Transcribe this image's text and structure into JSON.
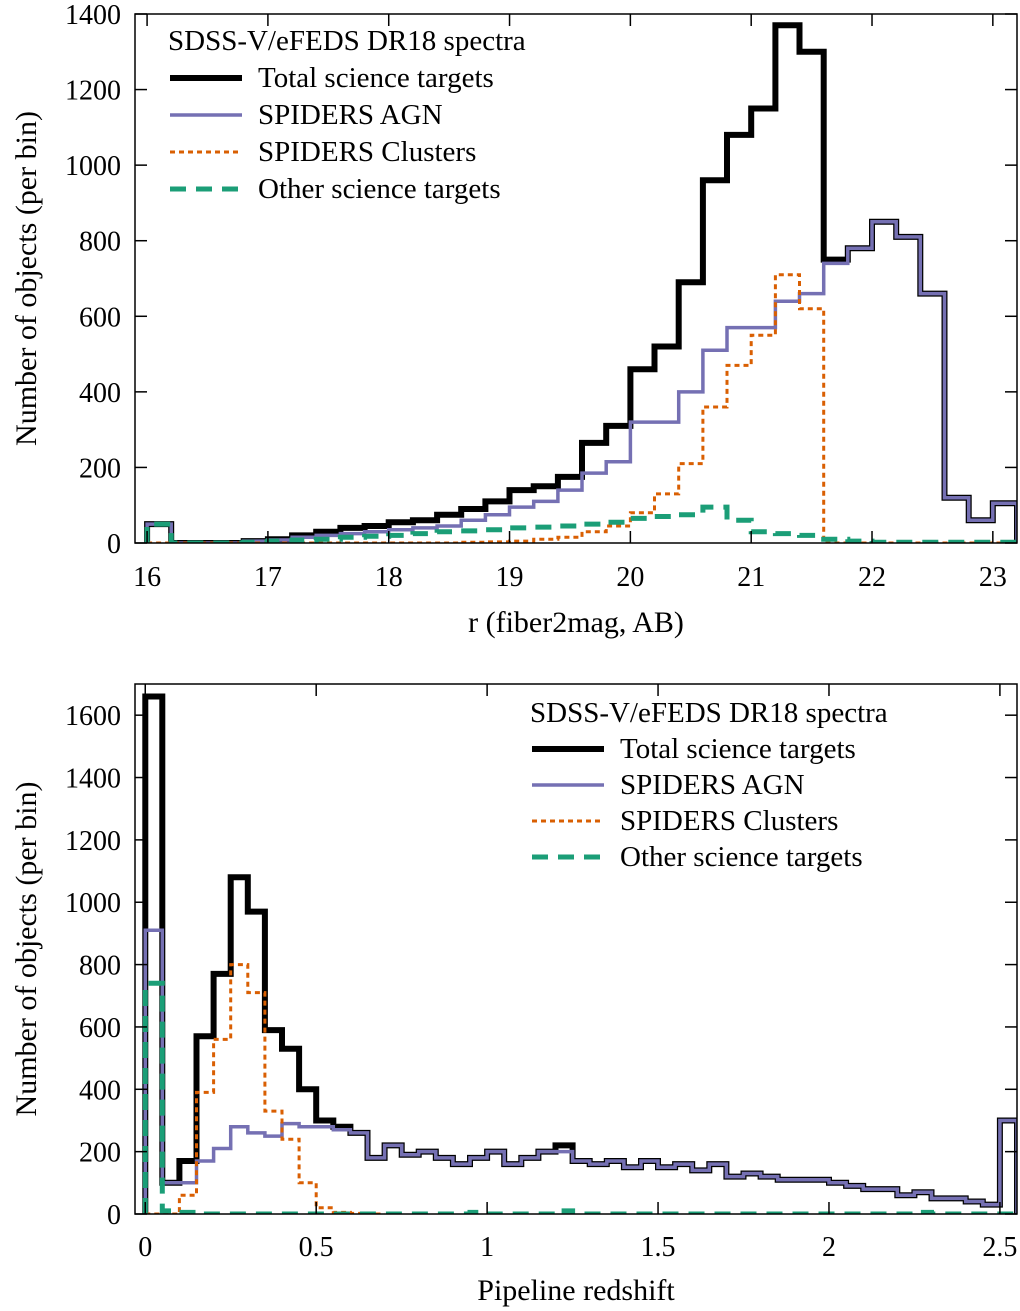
{
  "chart_data": [
    {
      "type": "histogram",
      "xlabel": "r (fiber2mag, AB)",
      "ylabel": "Number of objects (per bin)",
      "xlim": [
        15.9,
        23.2
      ],
      "ylim": [
        0,
        1400
      ],
      "xticks": [
        16,
        17,
        18,
        19,
        20,
        21,
        22,
        23
      ],
      "yticks": [
        0,
        200,
        400,
        600,
        800,
        1000,
        1200,
        1400
      ],
      "bin_width": 0.2,
      "legend_title": "SDSS-V/eFEDS DR18 spectra",
      "legend_position": "top-left",
      "series": [
        {
          "name": "Total science targets",
          "color": "#000000",
          "style": "solid-thick",
          "x": [
            16.0,
            16.2,
            16.4,
            16.6,
            16.8,
            17.0,
            17.2,
            17.4,
            17.6,
            17.8,
            18.0,
            18.2,
            18.4,
            18.6,
            18.8,
            19.0,
            19.2,
            19.4,
            19.6,
            19.8,
            20.0,
            20.2,
            20.4,
            20.6,
            20.8,
            21.0,
            21.2,
            21.4,
            21.6,
            21.8,
            22.0,
            22.2,
            22.4,
            22.6,
            22.8,
            23.0
          ],
          "values": [
            50,
            0,
            0,
            0,
            5,
            10,
            20,
            30,
            40,
            45,
            55,
            60,
            75,
            90,
            110,
            140,
            150,
            175,
            265,
            310,
            460,
            520,
            690,
            960,
            1080,
            1150,
            1370,
            1300,
            750,
            780,
            850,
            810,
            660,
            120,
            60,
            105
          ]
        },
        {
          "name": "SPIDERS AGN",
          "color": "#7570b3",
          "style": "solid",
          "x": [
            16.0,
            16.2,
            16.4,
            16.6,
            16.8,
            17.0,
            17.2,
            17.4,
            17.6,
            17.8,
            18.0,
            18.2,
            18.4,
            18.6,
            18.8,
            19.0,
            19.2,
            19.4,
            19.6,
            19.8,
            20.0,
            20.2,
            20.4,
            20.6,
            20.8,
            21.0,
            21.2,
            21.4,
            21.6,
            21.8,
            22.0,
            22.2,
            22.4,
            22.6,
            22.8,
            23.0
          ],
          "values": [
            50,
            0,
            0,
            0,
            5,
            8,
            15,
            20,
            25,
            30,
            35,
            40,
            45,
            60,
            75,
            95,
            110,
            140,
            185,
            215,
            320,
            320,
            400,
            510,
            570,
            570,
            640,
            660,
            740,
            780,
            850,
            810,
            660,
            120,
            60,
            105
          ]
        },
        {
          "name": "SPIDERS Clusters",
          "color": "#d95f02",
          "style": "dotted",
          "x": [
            16.0,
            16.2,
            16.4,
            16.6,
            16.8,
            17.0,
            17.2,
            17.4,
            17.6,
            17.8,
            18.0,
            18.2,
            18.4,
            18.6,
            18.8,
            19.0,
            19.2,
            19.4,
            19.6,
            19.8,
            20.0,
            20.2,
            20.4,
            20.6,
            20.8,
            21.0,
            21.2,
            21.4,
            21.6,
            21.8,
            22.0,
            22.2,
            22.4,
            22.6,
            22.8,
            23.0
          ],
          "values": [
            0,
            0,
            0,
            0,
            0,
            0,
            0,
            0,
            0,
            0,
            0,
            0,
            0,
            2,
            3,
            5,
            10,
            15,
            30,
            45,
            80,
            130,
            210,
            360,
            470,
            550,
            710,
            620,
            0,
            0,
            0,
            0,
            0,
            0,
            0,
            0
          ]
        },
        {
          "name": "Other science targets",
          "color": "#1b9e77",
          "style": "dashed",
          "x": [
            16.0,
            16.2,
            16.4,
            16.6,
            16.8,
            17.0,
            17.2,
            17.4,
            17.6,
            17.8,
            18.0,
            18.2,
            18.4,
            18.6,
            18.8,
            19.0,
            19.2,
            19.4,
            19.6,
            19.8,
            20.0,
            20.2,
            20.4,
            20.6,
            20.8,
            21.0,
            21.2,
            21.4,
            21.6,
            21.8,
            22.0,
            22.2,
            22.4,
            22.6,
            22.8,
            23.0
          ],
          "values": [
            50,
            0,
            0,
            0,
            2,
            5,
            8,
            10,
            15,
            18,
            20,
            25,
            30,
            32,
            35,
            40,
            42,
            45,
            50,
            55,
            65,
            70,
            75,
            95,
            60,
            30,
            25,
            20,
            10,
            5,
            2,
            2,
            2,
            2,
            2,
            2
          ]
        }
      ]
    },
    {
      "type": "histogram",
      "xlabel": "Pipeline redshift",
      "ylabel": "Number of objects (per bin)",
      "xlim": [
        -0.03,
        2.55
      ],
      "ylim": [
        0,
        1700
      ],
      "xticks": [
        0,
        0.5,
        1,
        1.5,
        2,
        2.5
      ],
      "xtick_labels": [
        "0",
        "0.5",
        "1",
        "1.5",
        "2",
        "2.5"
      ],
      "yticks": [
        0,
        200,
        400,
        600,
        800,
        1000,
        1200,
        1400,
        1600
      ],
      "bin_width": 0.05,
      "legend_title": "SDSS-V/eFEDS DR18 spectra",
      "legend_position": "top-right",
      "series": [
        {
          "name": "Total science targets",
          "color": "#000000",
          "style": "solid-thick",
          "x": [
            0.0,
            0.05,
            0.1,
            0.15,
            0.2,
            0.25,
            0.3,
            0.35,
            0.4,
            0.45,
            0.5,
            0.55,
            0.6,
            0.65,
            0.7,
            0.75,
            0.8,
            0.85,
            0.9,
            0.95,
            1.0,
            1.05,
            1.1,
            1.15,
            1.2,
            1.25,
            1.3,
            1.35,
            1.4,
            1.45,
            1.5,
            1.55,
            1.6,
            1.65,
            1.7,
            1.75,
            1.8,
            1.85,
            1.9,
            1.95,
            2.0,
            2.05,
            2.1,
            2.15,
            2.2,
            2.25,
            2.3,
            2.35,
            2.4,
            2.45,
            2.5
          ],
          "values": [
            1660,
            100,
            170,
            570,
            770,
            1080,
            970,
            590,
            530,
            400,
            300,
            280,
            260,
            180,
            220,
            190,
            200,
            180,
            160,
            180,
            200,
            160,
            180,
            200,
            220,
            170,
            160,
            170,
            150,
            170,
            150,
            160,
            140,
            160,
            120,
            130,
            120,
            110,
            110,
            110,
            100,
            90,
            80,
            80,
            60,
            70,
            50,
            50,
            40,
            30,
            300
          ]
        },
        {
          "name": "SPIDERS AGN",
          "color": "#7570b3",
          "style": "solid",
          "x": [
            0.0,
            0.05,
            0.1,
            0.15,
            0.2,
            0.25,
            0.3,
            0.35,
            0.4,
            0.45,
            0.5,
            0.55,
            0.6,
            0.65,
            0.7,
            0.75,
            0.8,
            0.85,
            0.9,
            0.95,
            1.0,
            1.05,
            1.1,
            1.15,
            1.2,
            1.25,
            1.3,
            1.35,
            1.4,
            1.45,
            1.5,
            1.55,
            1.6,
            1.65,
            1.7,
            1.75,
            1.8,
            1.85,
            1.9,
            1.95,
            2.0,
            2.05,
            2.1,
            2.15,
            2.2,
            2.25,
            2.3,
            2.35,
            2.4,
            2.45,
            2.5
          ],
          "values": [
            910,
            100,
            100,
            170,
            210,
            280,
            260,
            250,
            290,
            280,
            280,
            270,
            260,
            180,
            220,
            190,
            200,
            180,
            160,
            180,
            200,
            160,
            180,
            200,
            200,
            170,
            160,
            170,
            150,
            170,
            150,
            160,
            140,
            160,
            120,
            130,
            120,
            110,
            110,
            110,
            100,
            90,
            80,
            80,
            60,
            70,
            50,
            50,
            40,
            30,
            300
          ]
        },
        {
          "name": "SPIDERS Clusters",
          "color": "#d95f02",
          "style": "dotted",
          "x": [
            0.0,
            0.05,
            0.1,
            0.15,
            0.2,
            0.25,
            0.3,
            0.35,
            0.4,
            0.45,
            0.5,
            0.55,
            0.6,
            0.65
          ],
          "values": [
            0,
            0,
            60,
            390,
            560,
            800,
            710,
            330,
            240,
            100,
            20,
            5,
            2,
            0
          ]
        },
        {
          "name": "Other science targets",
          "color": "#1b9e77",
          "style": "dashed",
          "x": [
            0.0,
            0.05,
            0.1,
            0.15,
            0.2,
            0.25,
            0.3,
            0.35,
            0.4,
            0.45,
            0.5,
            0.55,
            0.6,
            0.65,
            0.7,
            0.75,
            0.8,
            0.85,
            0.9,
            0.95,
            1.0,
            1.05,
            1.1,
            1.15,
            1.2,
            1.25,
            1.3,
            1.35,
            1.4,
            1.45,
            1.5,
            1.55,
            1.6,
            1.65,
            1.7,
            1.75,
            1.8,
            1.85,
            1.9,
            1.95,
            2.0,
            2.05,
            2.1,
            2.15,
            2.2,
            2.25,
            2.3,
            2.35,
            2.4,
            2.45,
            2.5
          ],
          "values": [
            740,
            10,
            5,
            0,
            0,
            0,
            0,
            0,
            0,
            0,
            0,
            0,
            0,
            0,
            0,
            0,
            0,
            0,
            0,
            5,
            0,
            0,
            0,
            0,
            10,
            0,
            0,
            0,
            0,
            0,
            0,
            0,
            0,
            0,
            0,
            0,
            0,
            0,
            0,
            0,
            0,
            0,
            0,
            0,
            0,
            5,
            0,
            0,
            0,
            0,
            0
          ]
        }
      ]
    }
  ]
}
